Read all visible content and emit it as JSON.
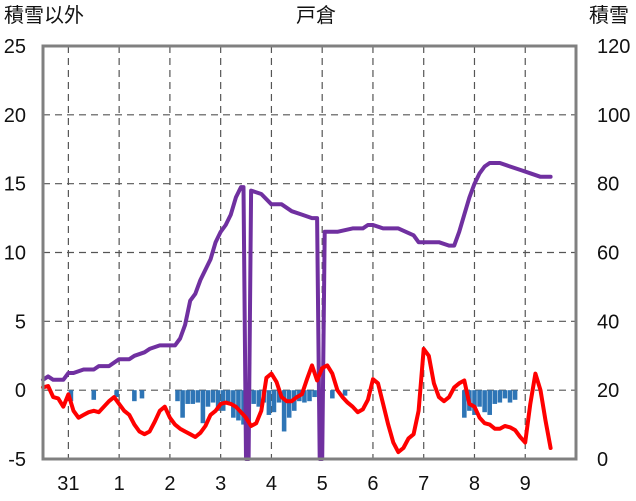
{
  "chart_data": {
    "type": "line",
    "title": "戸倉",
    "ylabel_left": "積雪以外",
    "ylabel_right": "積雪",
    "ylim_left": [
      -5,
      25
    ],
    "ylim_right": [
      0,
      120
    ],
    "yticks_left": [
      "25",
      "20",
      "15",
      "10",
      "5",
      "0",
      "-5"
    ],
    "yticks_right": [
      "120",
      "100",
      "80",
      "60",
      "40",
      "20",
      "0"
    ],
    "xlim": [
      -0.5,
      10
    ],
    "xticks": [
      {
        "x": 0,
        "label": "31"
      },
      {
        "x": 1,
        "label": "1"
      },
      {
        "x": 2,
        "label": "2"
      },
      {
        "x": 3,
        "label": "3"
      },
      {
        "x": 4,
        "label": "4"
      },
      {
        "x": 5,
        "label": "5"
      },
      {
        "x": 6,
        "label": "6"
      },
      {
        "x": 7,
        "label": "7"
      },
      {
        "x": 8,
        "label": "8"
      },
      {
        "x": 9,
        "label": "9"
      }
    ],
    "grid": "dashed-vertical-and-horizontal",
    "colors": {
      "temperature": "#ff0000",
      "snow_depth": "#7030a0",
      "precipitation": "#2e75b6",
      "frame": "#808080",
      "grid": "#555555"
    },
    "series": [
      {
        "axis": "right",
        "color": "#7030a0",
        "x": [
          -0.5,
          -0.4,
          -0.3,
          -0.1,
          0.0,
          0.1,
          0.3,
          0.5,
          0.6,
          0.8,
          1.0,
          1.2,
          1.3,
          1.5,
          1.6,
          1.8,
          2.0,
          2.1,
          2.2,
          2.3,
          2.4,
          2.5,
          2.6,
          2.7,
          2.8,
          2.9,
          3.0,
          3.1,
          3.2,
          3.3,
          3.4,
          3.45,
          3.5,
          3.55,
          3.6,
          3.8,
          4.0,
          4.2,
          4.4,
          4.6,
          4.8,
          4.9,
          4.95,
          5.0,
          5.05,
          5.1,
          5.3,
          5.6,
          5.8,
          5.9,
          6.0,
          6.2,
          6.5,
          6.8,
          6.9,
          7.1,
          7.3,
          7.5,
          7.6,
          7.7,
          7.8,
          7.9,
          8.0,
          8.1,
          8.2,
          8.3,
          8.5,
          8.7,
          8.9,
          9.1,
          9.3,
          9.5
        ],
        "y": [
          23,
          24,
          23,
          23,
          25,
          25,
          26,
          26,
          27,
          27,
          29,
          29,
          30,
          31,
          32,
          33,
          33,
          33,
          35,
          39,
          46,
          48,
          52,
          55,
          58,
          63,
          66,
          68,
          71,
          76,
          79,
          79,
          0,
          0,
          78,
          77,
          74,
          74,
          72,
          71,
          70,
          70,
          0,
          0,
          66,
          66,
          66,
          67,
          67,
          68,
          68,
          67,
          67,
          65,
          63,
          63,
          63,
          62,
          62,
          66,
          71,
          76,
          80,
          83,
          85,
          86,
          86,
          85,
          84,
          83,
          82,
          82
        ]
      },
      {
        "axis": "left",
        "color": "#ff0000",
        "x": [
          -0.5,
          -0.4,
          -0.3,
          -0.2,
          -0.1,
          0.0,
          0.1,
          0.2,
          0.3,
          0.4,
          0.5,
          0.6,
          0.7,
          0.8,
          0.9,
          1.0,
          1.1,
          1.2,
          1.3,
          1.4,
          1.5,
          1.6,
          1.7,
          1.8,
          1.9,
          2.0,
          2.1,
          2.2,
          2.3,
          2.4,
          2.5,
          2.6,
          2.7,
          2.8,
          2.9,
          3.0,
          3.1,
          3.2,
          3.3,
          3.4,
          3.5,
          3.6,
          3.7,
          3.8,
          3.9,
          4.0,
          4.1,
          4.2,
          4.3,
          4.4,
          4.5,
          4.6,
          4.7,
          4.8,
          4.9,
          5.0,
          5.1,
          5.2,
          5.3,
          5.4,
          5.5,
          5.6,
          5.7,
          5.8,
          5.9,
          6.0,
          6.1,
          6.2,
          6.3,
          6.4,
          6.5,
          6.6,
          6.7,
          6.8,
          6.9,
          7.0,
          7.1,
          7.2,
          7.3,
          7.4,
          7.5,
          7.6,
          7.7,
          7.8,
          7.9,
          8.0,
          8.1,
          8.2,
          8.3,
          8.4,
          8.5,
          8.6,
          8.7,
          8.8,
          8.9,
          9.0,
          9.1,
          9.2,
          9.3,
          9.4,
          9.5
        ],
        "y": [
          0.2,
          0.3,
          -0.5,
          -0.6,
          -1.2,
          -0.3,
          -1.5,
          -2.0,
          -1.8,
          -1.6,
          -1.5,
          -1.6,
          -1.2,
          -0.8,
          -0.5,
          -1.0,
          -1.5,
          -1.8,
          -2.5,
          -3.0,
          -3.2,
          -3.0,
          -2.3,
          -1.5,
          -1.2,
          -2.0,
          -2.5,
          -2.8,
          -3.0,
          -3.2,
          -3.4,
          -3.1,
          -2.6,
          -1.8,
          -1.5,
          -1.0,
          -0.9,
          -1.0,
          -1.2,
          -1.6,
          -2.0,
          -2.6,
          -2.4,
          -1.5,
          0.9,
          1.2,
          0.6,
          -0.5,
          -0.8,
          -0.8,
          -0.5,
          -0.3,
          0.8,
          1.8,
          0.7,
          1.6,
          1.8,
          1.2,
          0.0,
          -0.5,
          -0.9,
          -1.2,
          -1.6,
          -1.4,
          -0.7,
          0.8,
          0.5,
          -1.0,
          -2.5,
          -3.8,
          -4.5,
          -4.2,
          -3.5,
          -3.2,
          -1.5,
          3.0,
          2.5,
          0.5,
          -0.5,
          -0.8,
          -0.5,
          0.2,
          0.5,
          0.7,
          -1.0,
          -1.2,
          -2.0,
          -2.4,
          -2.5,
          -2.8,
          -2.8,
          -2.6,
          -2.7,
          -2.9,
          -3.4,
          -3.8,
          -1.0,
          1.2,
          0.0,
          -2.2,
          -4.2
        ]
      },
      {
        "axis": "left",
        "type": "bar",
        "color": "#2e75b6",
        "x": [
          0.05,
          0.5,
          0.95,
          1.3,
          1.45,
          2.15,
          2.25,
          2.35,
          2.45,
          2.55,
          2.65,
          2.75,
          2.85,
          2.95,
          3.05,
          3.15,
          3.25,
          3.35,
          3.45,
          3.55,
          3.65,
          3.75,
          3.85,
          3.95,
          4.05,
          4.15,
          4.25,
          4.35,
          4.45,
          4.55,
          4.65,
          4.75,
          4.85,
          4.95,
          5.2,
          5.45,
          7.8,
          7.9,
          8.0,
          8.1,
          8.2,
          8.3,
          8.4,
          8.5,
          8.6,
          8.7,
          8.8
        ],
        "y": [
          -0.8,
          -0.7,
          -0.5,
          -0.8,
          -0.6,
          -0.8,
          -2.0,
          -1.0,
          -1.0,
          -0.9,
          -2.4,
          -1.2,
          -0.9,
          -1.5,
          -1.5,
          -0.9,
          -2.0,
          -2.2,
          -2.5,
          -2.5,
          -1.0,
          -1.2,
          -0.9,
          -1.8,
          -1.6,
          -0.9,
          -3.0,
          -2.0,
          -1.5,
          -0.8,
          -0.9,
          -0.8,
          -0.5,
          -0.8,
          -0.6,
          -0.4,
          -2.0,
          -1.5,
          -1.8,
          -1.2,
          -1.6,
          -1.8,
          -1.0,
          -0.9,
          -0.6,
          -0.9,
          -0.7
        ]
      }
    ]
  }
}
